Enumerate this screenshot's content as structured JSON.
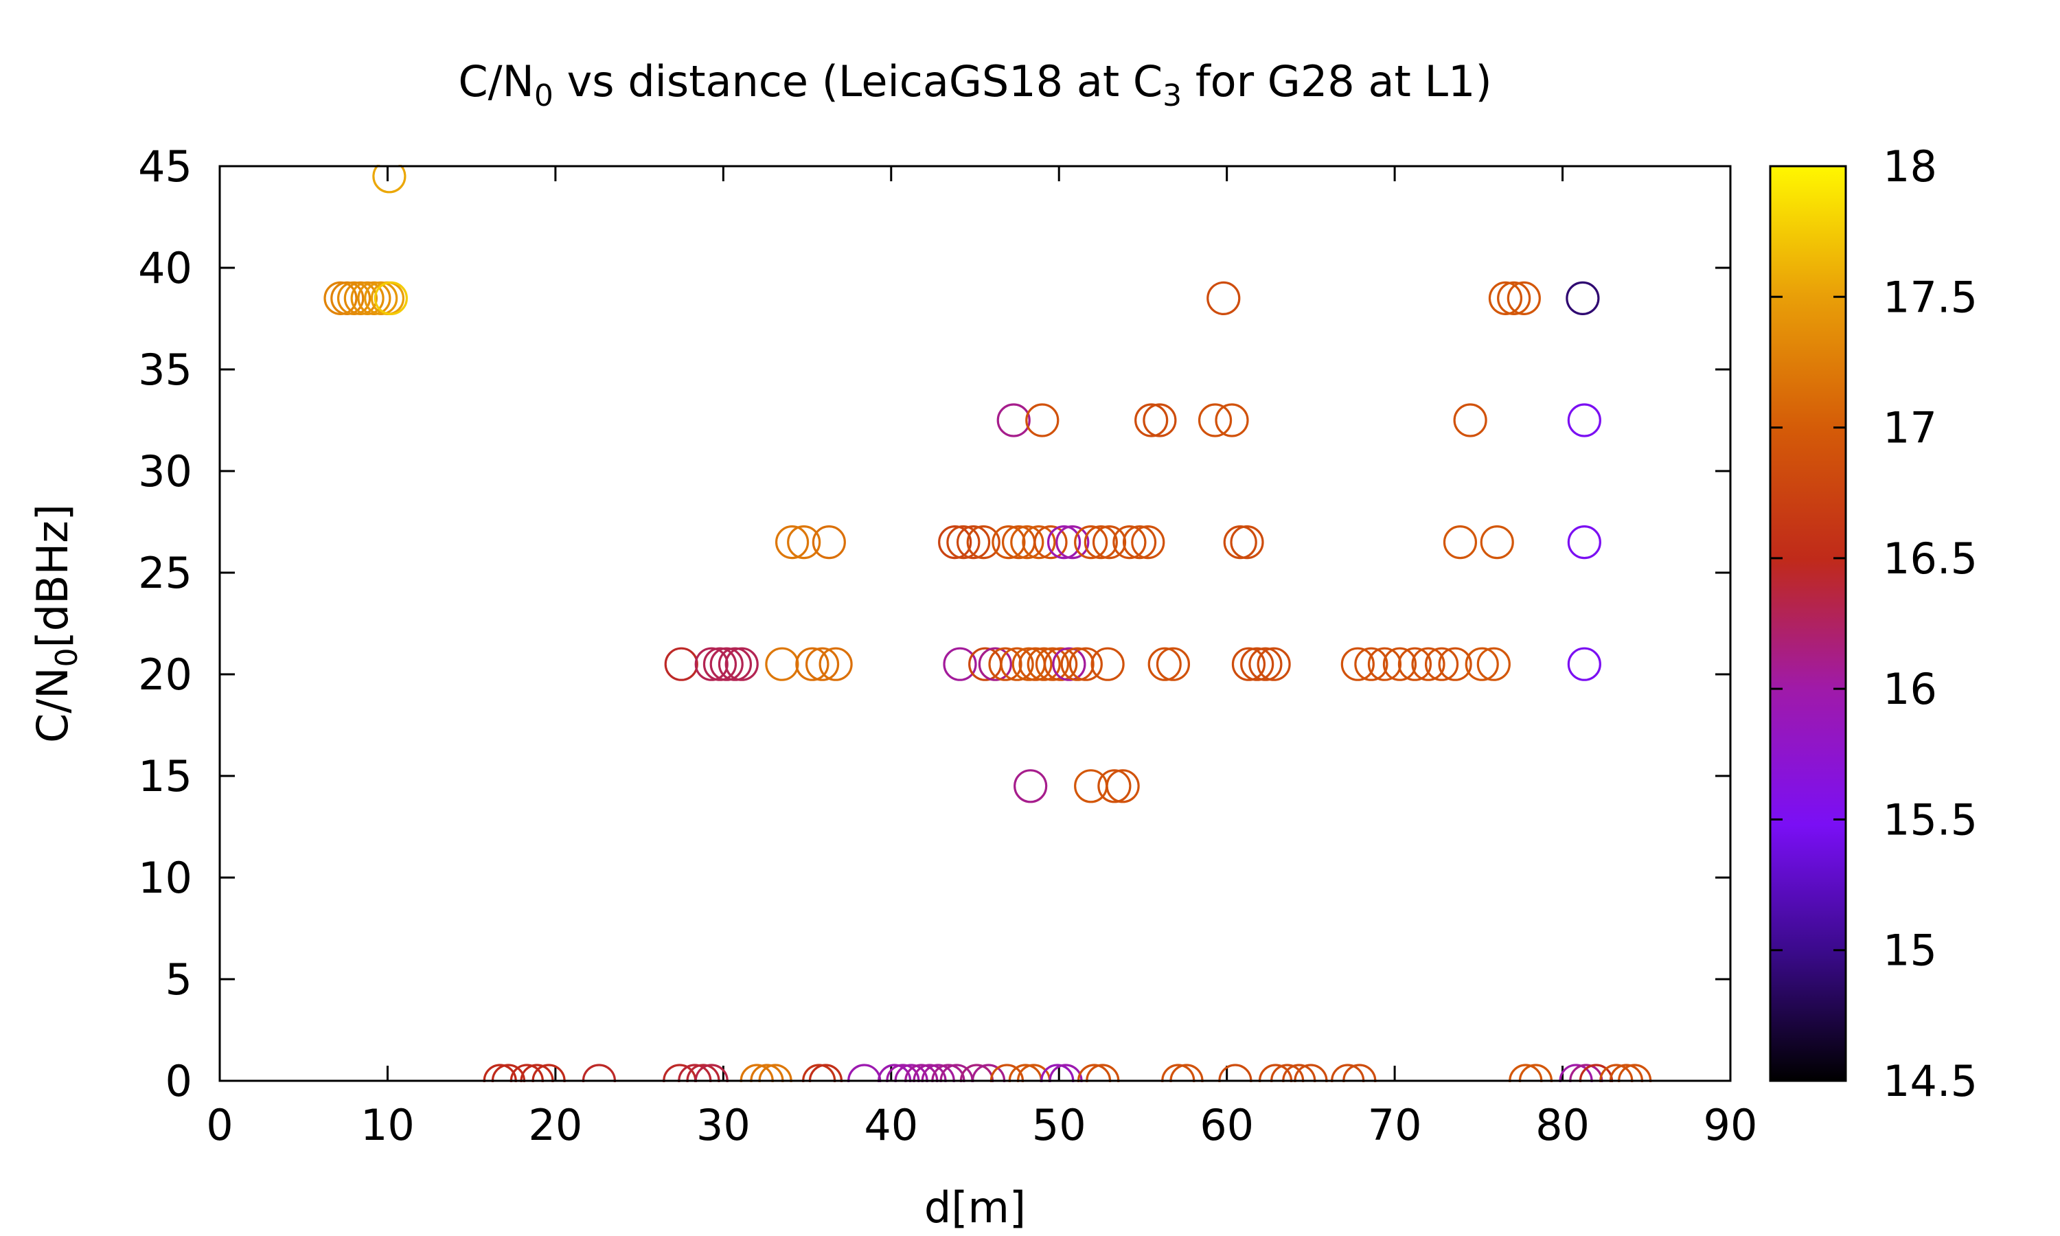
{
  "chart_data": {
    "type": "scatter",
    "title": "C/N",
    "title_sub": "0",
    "title_mid": " vs distance (LeicaGS18 at C",
    "title_sub2": "3",
    "title_end": " for G28 at L1)",
    "xlabel": "d[m]",
    "ylabel_main": "C/N",
    "ylabel_sub": "0",
    "ylabel_end": "[dBHz]",
    "xlim": [
      0,
      90
    ],
    "ylim": [
      0,
      45
    ],
    "xticks": [
      0,
      10,
      20,
      30,
      40,
      50,
      60,
      70,
      80,
      90
    ],
    "yticks": [
      0,
      5,
      10,
      15,
      20,
      25,
      30,
      35,
      40,
      45
    ],
    "grid": false,
    "marker": "open-circle",
    "colorbar": {
      "range": [
        14.5,
        18
      ],
      "ticks": [
        14.5,
        15,
        15.5,
        16,
        16.5,
        17,
        17.5,
        18
      ],
      "tick_labels": [
        "14.5",
        "15",
        "15.5",
        "16",
        "16.5",
        "17",
        "17.5",
        "18"
      ],
      "palette": "black-blue-purple-red-orange-yellow"
    },
    "points": [
      {
        "x": 10.1,
        "y": 44.5,
        "c": 17.55
      },
      {
        "x": 7.2,
        "y": 38.5,
        "c": 17.3
      },
      {
        "x": 7.6,
        "y": 38.5,
        "c": 17.3
      },
      {
        "x": 8.0,
        "y": 38.5,
        "c": 17.35
      },
      {
        "x": 8.4,
        "y": 38.5,
        "c": 17.35
      },
      {
        "x": 8.8,
        "y": 38.5,
        "c": 17.4
      },
      {
        "x": 9.2,
        "y": 38.5,
        "c": 17.4
      },
      {
        "x": 9.6,
        "y": 38.5,
        "c": 17.45
      },
      {
        "x": 10.0,
        "y": 38.5,
        "c": 17.5
      },
      {
        "x": 10.2,
        "y": 38.5,
        "c": 17.75
      },
      {
        "x": 59.8,
        "y": 38.5,
        "c": 16.85
      },
      {
        "x": 76.6,
        "y": 38.5,
        "c": 16.95
      },
      {
        "x": 77.1,
        "y": 38.5,
        "c": 16.95
      },
      {
        "x": 77.7,
        "y": 38.5,
        "c": 16.95
      },
      {
        "x": 81.2,
        "y": 38.5,
        "c": 14.9
      },
      {
        "x": 47.3,
        "y": 32.5,
        "c": 16.1
      },
      {
        "x": 49.0,
        "y": 32.5,
        "c": 16.9
      },
      {
        "x": 55.5,
        "y": 32.5,
        "c": 16.85
      },
      {
        "x": 56.0,
        "y": 32.5,
        "c": 16.85
      },
      {
        "x": 59.3,
        "y": 32.5,
        "c": 16.9
      },
      {
        "x": 60.3,
        "y": 32.5,
        "c": 16.9
      },
      {
        "x": 74.5,
        "y": 32.5,
        "c": 16.9
      },
      {
        "x": 81.3,
        "y": 32.5,
        "c": 15.5
      },
      {
        "x": 34.1,
        "y": 26.5,
        "c": 17.2
      },
      {
        "x": 34.8,
        "y": 26.5,
        "c": 17.2
      },
      {
        "x": 36.3,
        "y": 26.5,
        "c": 17.15
      },
      {
        "x": 43.8,
        "y": 26.5,
        "c": 16.75
      },
      {
        "x": 44.3,
        "y": 26.5,
        "c": 16.8
      },
      {
        "x": 44.9,
        "y": 26.5,
        "c": 16.8
      },
      {
        "x": 45.5,
        "y": 26.5,
        "c": 16.85
      },
      {
        "x": 47.0,
        "y": 26.5,
        "c": 16.95
      },
      {
        "x": 47.6,
        "y": 26.5,
        "c": 16.95
      },
      {
        "x": 48.1,
        "y": 26.5,
        "c": 17.0
      },
      {
        "x": 48.8,
        "y": 26.5,
        "c": 17.0
      },
      {
        "x": 49.5,
        "y": 26.5,
        "c": 16.9
      },
      {
        "x": 50.3,
        "y": 26.5,
        "c": 15.95
      },
      {
        "x": 50.8,
        "y": 26.5,
        "c": 16.0
      },
      {
        "x": 51.9,
        "y": 26.5,
        "c": 16.9
      },
      {
        "x": 52.5,
        "y": 26.5,
        "c": 16.9
      },
      {
        "x": 53.0,
        "y": 26.5,
        "c": 16.9
      },
      {
        "x": 54.2,
        "y": 26.5,
        "c": 16.9
      },
      {
        "x": 54.8,
        "y": 26.5,
        "c": 16.9
      },
      {
        "x": 55.3,
        "y": 26.5,
        "c": 16.9
      },
      {
        "x": 60.8,
        "y": 26.5,
        "c": 16.85
      },
      {
        "x": 61.2,
        "y": 26.5,
        "c": 16.85
      },
      {
        "x": 73.9,
        "y": 26.5,
        "c": 16.95
      },
      {
        "x": 76.1,
        "y": 26.5,
        "c": 16.95
      },
      {
        "x": 81.3,
        "y": 26.5,
        "c": 15.5
      },
      {
        "x": 27.5,
        "y": 20.5,
        "c": 16.45
      },
      {
        "x": 29.3,
        "y": 20.5,
        "c": 16.3
      },
      {
        "x": 29.8,
        "y": 20.5,
        "c": 16.3
      },
      {
        "x": 30.2,
        "y": 20.5,
        "c": 16.3
      },
      {
        "x": 30.7,
        "y": 20.5,
        "c": 16.3
      },
      {
        "x": 31.1,
        "y": 20.5,
        "c": 16.3
      },
      {
        "x": 33.5,
        "y": 20.5,
        "c": 17.2
      },
      {
        "x": 35.3,
        "y": 20.5,
        "c": 17.15
      },
      {
        "x": 35.9,
        "y": 20.5,
        "c": 17.15
      },
      {
        "x": 36.7,
        "y": 20.5,
        "c": 17.15
      },
      {
        "x": 44.1,
        "y": 20.5,
        "c": 16.05
      },
      {
        "x": 45.6,
        "y": 20.5,
        "c": 16.8
      },
      {
        "x": 46.2,
        "y": 20.5,
        "c": 16.1
      },
      {
        "x": 46.8,
        "y": 20.5,
        "c": 16.9
      },
      {
        "x": 47.5,
        "y": 20.5,
        "c": 16.95
      },
      {
        "x": 48.2,
        "y": 20.5,
        "c": 17.0
      },
      {
        "x": 48.6,
        "y": 20.5,
        "c": 16.95
      },
      {
        "x": 49.1,
        "y": 20.5,
        "c": 16.95
      },
      {
        "x": 49.6,
        "y": 20.5,
        "c": 16.95
      },
      {
        "x": 50.1,
        "y": 20.5,
        "c": 16.9
      },
      {
        "x": 50.6,
        "y": 20.5,
        "c": 16.05
      },
      {
        "x": 51.1,
        "y": 20.5,
        "c": 16.9
      },
      {
        "x": 51.6,
        "y": 20.5,
        "c": 16.9
      },
      {
        "x": 52.9,
        "y": 20.5,
        "c": 16.9
      },
      {
        "x": 56.3,
        "y": 20.5,
        "c": 16.9
      },
      {
        "x": 56.8,
        "y": 20.5,
        "c": 16.9
      },
      {
        "x": 61.3,
        "y": 20.5,
        "c": 16.85
      },
      {
        "x": 61.8,
        "y": 20.5,
        "c": 16.85
      },
      {
        "x": 62.3,
        "y": 20.5,
        "c": 16.85
      },
      {
        "x": 62.8,
        "y": 20.5,
        "c": 16.85
      },
      {
        "x": 67.8,
        "y": 20.5,
        "c": 16.9
      },
      {
        "x": 68.6,
        "y": 20.5,
        "c": 16.9
      },
      {
        "x": 69.4,
        "y": 20.5,
        "c": 16.9
      },
      {
        "x": 70.3,
        "y": 20.5,
        "c": 16.9
      },
      {
        "x": 71.2,
        "y": 20.5,
        "c": 16.9
      },
      {
        "x": 72.0,
        "y": 20.5,
        "c": 16.9
      },
      {
        "x": 72.8,
        "y": 20.5,
        "c": 16.9
      },
      {
        "x": 73.6,
        "y": 20.5,
        "c": 16.9
      },
      {
        "x": 75.2,
        "y": 20.5,
        "c": 16.95
      },
      {
        "x": 75.9,
        "y": 20.5,
        "c": 16.95
      },
      {
        "x": 81.3,
        "y": 20.5,
        "c": 15.5
      },
      {
        "x": 48.3,
        "y": 14.5,
        "c": 16.1
      },
      {
        "x": 51.9,
        "y": 14.5,
        "c": 16.95
      },
      {
        "x": 53.3,
        "y": 14.5,
        "c": 16.9
      },
      {
        "x": 53.8,
        "y": 14.5,
        "c": 16.9
      },
      {
        "x": 16.7,
        "y": 0,
        "c": 16.5
      },
      {
        "x": 17.2,
        "y": 0,
        "c": 16.5
      },
      {
        "x": 18.3,
        "y": 0,
        "c": 16.5
      },
      {
        "x": 18.9,
        "y": 0,
        "c": 16.5
      },
      {
        "x": 19.6,
        "y": 0,
        "c": 16.5
      },
      {
        "x": 22.6,
        "y": 0,
        "c": 16.45
      },
      {
        "x": 27.4,
        "y": 0,
        "c": 16.45
      },
      {
        "x": 28.3,
        "y": 0,
        "c": 16.4
      },
      {
        "x": 28.8,
        "y": 0,
        "c": 16.4
      },
      {
        "x": 29.3,
        "y": 0,
        "c": 16.35
      },
      {
        "x": 32.0,
        "y": 0,
        "c": 17.2
      },
      {
        "x": 32.6,
        "y": 0,
        "c": 17.2
      },
      {
        "x": 33.1,
        "y": 0,
        "c": 17.2
      },
      {
        "x": 35.7,
        "y": 0,
        "c": 16.6
      },
      {
        "x": 36.1,
        "y": 0,
        "c": 16.55
      },
      {
        "x": 38.4,
        "y": 0,
        "c": 15.95
      },
      {
        "x": 40.2,
        "y": 0,
        "c": 15.95
      },
      {
        "x": 40.7,
        "y": 0,
        "c": 16.0
      },
      {
        "x": 41.2,
        "y": 0,
        "c": 16.0
      },
      {
        "x": 41.8,
        "y": 0,
        "c": 16.05
      },
      {
        "x": 42.3,
        "y": 0,
        "c": 16.05
      },
      {
        "x": 42.8,
        "y": 0,
        "c": 16.05
      },
      {
        "x": 43.4,
        "y": 0,
        "c": 16.1
      },
      {
        "x": 43.9,
        "y": 0,
        "c": 16.1
      },
      {
        "x": 45.1,
        "y": 0,
        "c": 16.15
      },
      {
        "x": 45.8,
        "y": 0,
        "c": 16.1
      },
      {
        "x": 46.9,
        "y": 0,
        "c": 16.9
      },
      {
        "x": 48.0,
        "y": 0,
        "c": 16.95
      },
      {
        "x": 48.5,
        "y": 0,
        "c": 16.95
      },
      {
        "x": 49.9,
        "y": 0,
        "c": 15.9
      },
      {
        "x": 50.4,
        "y": 0,
        "c": 15.95
      },
      {
        "x": 52.1,
        "y": 0,
        "c": 16.9
      },
      {
        "x": 52.6,
        "y": 0,
        "c": 16.9
      },
      {
        "x": 57.1,
        "y": 0,
        "c": 16.9
      },
      {
        "x": 57.6,
        "y": 0,
        "c": 16.9
      },
      {
        "x": 60.5,
        "y": 0,
        "c": 16.85
      },
      {
        "x": 62.9,
        "y": 0,
        "c": 16.85
      },
      {
        "x": 63.6,
        "y": 0,
        "c": 16.85
      },
      {
        "x": 64.3,
        "y": 0,
        "c": 16.85
      },
      {
        "x": 65.0,
        "y": 0,
        "c": 16.85
      },
      {
        "x": 67.2,
        "y": 0,
        "c": 16.85
      },
      {
        "x": 67.9,
        "y": 0,
        "c": 16.85
      },
      {
        "x": 77.8,
        "y": 0,
        "c": 16.95
      },
      {
        "x": 78.4,
        "y": 0,
        "c": 16.95
      },
      {
        "x": 80.8,
        "y": 0,
        "c": 16.0
      },
      {
        "x": 81.4,
        "y": 0,
        "c": 16.1
      },
      {
        "x": 82.0,
        "y": 0,
        "c": 16.5
      },
      {
        "x": 83.2,
        "y": 0,
        "c": 16.9
      },
      {
        "x": 83.8,
        "y": 0,
        "c": 16.9
      },
      {
        "x": 84.3,
        "y": 0,
        "c": 16.9
      }
    ]
  }
}
